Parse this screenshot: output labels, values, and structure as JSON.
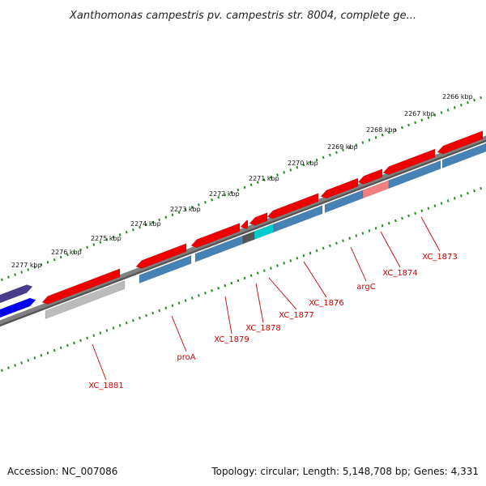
{
  "title": "Xanthomonas campestris pv. campestris str. 8004, complete ge...",
  "footer": {
    "accession": "Accession: NC_007086",
    "summary": "Topology: circular; Length: 5,148,708 bp; Genes: 4,331"
  },
  "ruler_labels": [
    "2266 kbp",
    "2267 kbp",
    "2268 kbp",
    "2269 kbp",
    "2270 kbp",
    "2271 kbp",
    "2272 kbp",
    "2273 kbp",
    "2274 kbp",
    "2275 kbp",
    "2276 kbp",
    "2277 kbp"
  ],
  "gene_labels": [
    "XC_1873",
    "XC_1874",
    "argC",
    "XC_1876",
    "XC_1877",
    "XC_1878",
    "XC_1879",
    "proA",
    "XC_1881"
  ],
  "colors": {
    "forward_cds": "#ee0000",
    "reverse_cds": "#4682b4",
    "backbone": "#808080",
    "ruler_ticks": "#228b22",
    "label_text": "#cc0000",
    "highlight_cyan": "#00cccc",
    "pseudo_gray": "#bbbbbb",
    "pink_feature": "#f08080",
    "navy_feature": "#483d8b",
    "blue_feature": "#0000ee"
  }
}
